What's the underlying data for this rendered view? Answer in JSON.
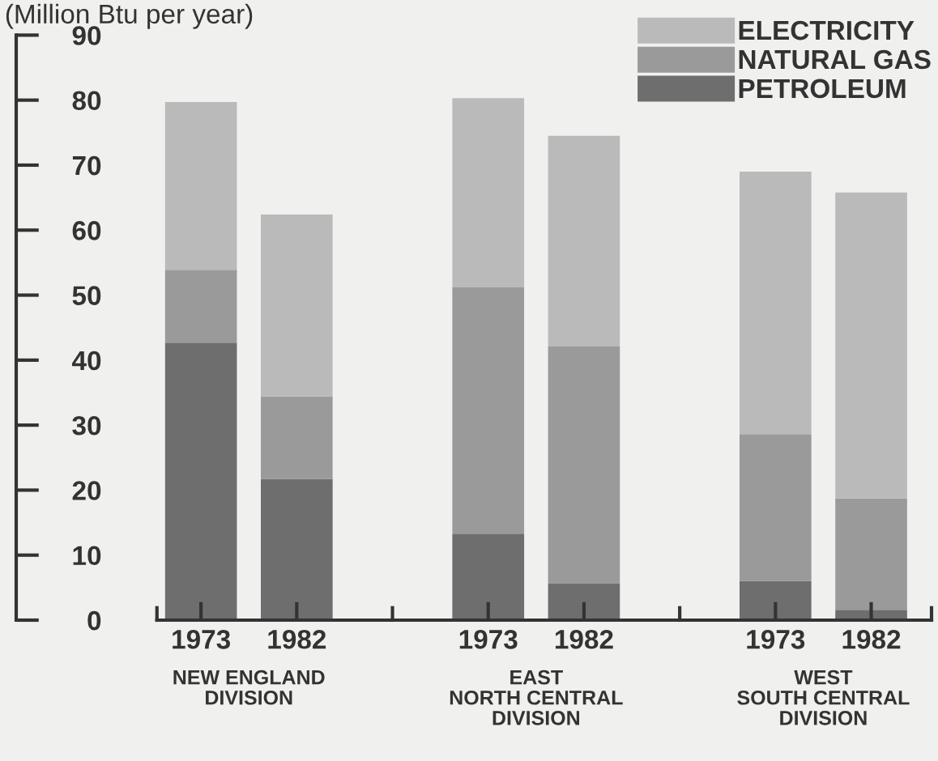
{
  "chart_data": {
    "type": "bar",
    "stacked": true,
    "ylabel": "(Million Btu per year)",
    "categories": [
      "1973",
      "1982",
      "1973",
      "1982",
      "1973",
      "1982"
    ],
    "series": [
      {
        "name": "PETROLEUM",
        "color": "#6e6e6e",
        "values": [
          42.7,
          21.7,
          13.3,
          5.6,
          6.0,
          1.6
        ]
      },
      {
        "name": "NATURAL GAS",
        "color": "#9a9a9a",
        "values": [
          11.2,
          12.7,
          37.9,
          36.5,
          22.6,
          17.1
        ]
      },
      {
        "name": "ELECTRICITY",
        "color": "#bababa",
        "values": [
          25.8,
          28.0,
          29.1,
          32.4,
          40.4,
          47.1
        ]
      }
    ],
    "annotations": [
      "NEW ENGLAND\nDIVISION",
      "EAST\nNORTH CENTRAL\nDIVISION",
      "WEST\nSOUTH CENTRAL\nDIVISION"
    ],
    "ylim": [
      0,
      90
    ],
    "yticks": [
      0,
      10,
      20,
      30,
      40,
      50,
      60,
      70,
      80,
      90
    ],
    "legend": "top right",
    "grid": false
  }
}
